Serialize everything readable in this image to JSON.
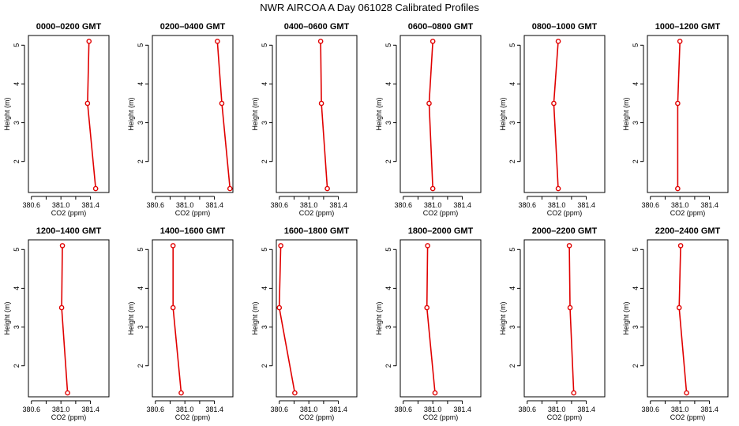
{
  "figure": {
    "title": "NWR AIRCOA A  Day 061028  Calibrated Profiles"
  },
  "chart_data": {
    "type": "line",
    "series_color": "#e00000",
    "grid": false,
    "xlabel": "CO2 (ppm)",
    "ylabel": "Height (m)",
    "xlim": [
      380.56,
      381.65
    ],
    "ylim": [
      1.2,
      5.25
    ],
    "x_ticks": [
      {
        "value": 380.6,
        "label": "380.6"
      },
      {
        "value": 381.0,
        "label": "381.0"
      },
      {
        "value": 381.4,
        "label": "381.4"
      }
    ],
    "x_minor_ticks": [
      380.8,
      381.2
    ],
    "y_ticks": [
      {
        "value": 2,
        "label": "2"
      },
      {
        "value": 3,
        "label": "3"
      },
      {
        "value": 4,
        "label": "4"
      },
      {
        "value": 5,
        "label": "5"
      }
    ],
    "panels": [
      {
        "title": "0000–0200 GMT",
        "points": [
          [
            381.38,
            5.1
          ],
          [
            381.36,
            3.5
          ],
          [
            381.47,
            1.3
          ]
        ]
      },
      {
        "title": "0200–0400 GMT",
        "points": [
          [
            381.44,
            5.1
          ],
          [
            381.5,
            3.5
          ],
          [
            381.61,
            1.3
          ]
        ]
      },
      {
        "title": "0400–0600 GMT",
        "points": [
          [
            381.16,
            5.1
          ],
          [
            381.17,
            3.5
          ],
          [
            381.25,
            1.3
          ]
        ]
      },
      {
        "title": "0600–0800 GMT",
        "points": [
          [
            381.0,
            5.1
          ],
          [
            380.95,
            3.5
          ],
          [
            381.0,
            1.3
          ]
        ]
      },
      {
        "title": "0800–1000 GMT",
        "points": [
          [
            381.02,
            5.1
          ],
          [
            380.96,
            3.5
          ],
          [
            381.02,
            1.3
          ]
        ]
      },
      {
        "title": "1000–1200 GMT",
        "points": [
          [
            381.0,
            5.1
          ],
          [
            380.97,
            3.5
          ],
          [
            380.97,
            1.3
          ]
        ]
      },
      {
        "title": "1200–1400 GMT",
        "points": [
          [
            381.02,
            5.1
          ],
          [
            381.01,
            3.5
          ],
          [
            381.09,
            1.3
          ]
        ]
      },
      {
        "title": "1400–1600 GMT",
        "points": [
          [
            380.84,
            5.1
          ],
          [
            380.84,
            3.5
          ],
          [
            380.95,
            1.3
          ]
        ]
      },
      {
        "title": "1600–1800 GMT",
        "points": [
          [
            380.62,
            5.1
          ],
          [
            380.6,
            3.5
          ],
          [
            380.81,
            1.3
          ]
        ]
      },
      {
        "title": "1800–2000 GMT",
        "points": [
          [
            380.93,
            5.1
          ],
          [
            380.92,
            3.5
          ],
          [
            381.03,
            1.3
          ]
        ]
      },
      {
        "title": "2000–2200 GMT",
        "points": [
          [
            381.17,
            5.1
          ],
          [
            381.18,
            3.5
          ],
          [
            381.23,
            1.3
          ]
        ]
      },
      {
        "title": "2200–2400 GMT",
        "points": [
          [
            381.01,
            5.1
          ],
          [
            380.99,
            3.5
          ],
          [
            381.09,
            1.3
          ]
        ]
      }
    ]
  }
}
